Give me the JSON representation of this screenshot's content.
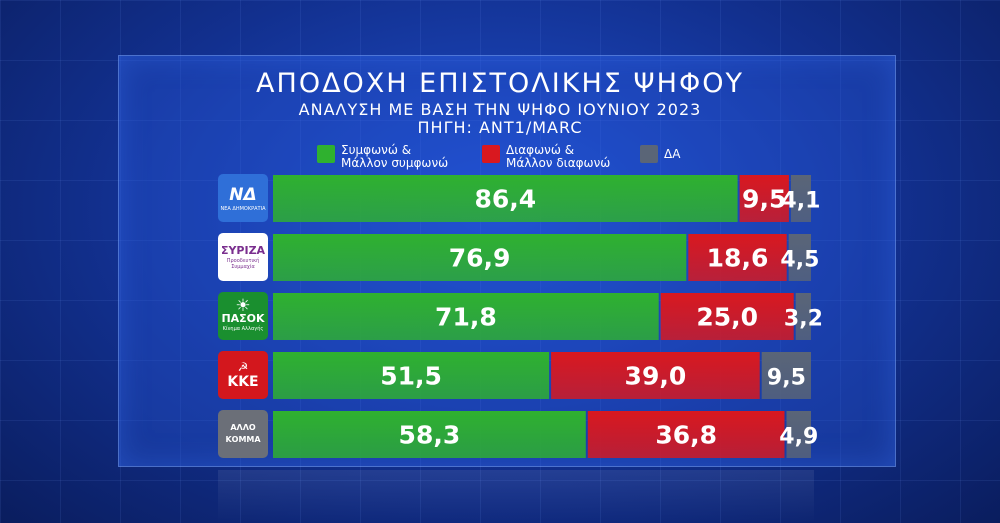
{
  "colors": {
    "agree": "#2fb12f",
    "disagree": "#d9181f",
    "dk": "#5a6577"
  },
  "logos": [
    {
      "text": "ΝΔ",
      "sub": "ΝΕΑ ΔΗΜΟΚΡΑΤΙΑ",
      "bg": "#2f6fd8",
      "color": "#ffffff",
      "icon": "nd-logo-icon"
    },
    {
      "text": "ΣΥΡΙΖΑ",
      "sub": "Προοδευτική Συμμαχία",
      "bg": "#ffffff",
      "color": "#7a2e8e",
      "icon": "syriza-logo-icon"
    },
    {
      "text": "ΠΑΣΟΚ",
      "sub": "Κίνημα Αλλαγής",
      "bg": "#1a8f2f",
      "color": "#ffffff",
      "icon": "pasok-logo-icon"
    },
    {
      "text": "ΚΚΕ",
      "sub": "",
      "bg": "#d3171d",
      "color": "#ffffff",
      "icon": "kke-logo-icon"
    },
    {
      "text": "ΑΛΛΟ ΚΟΜΜΑ",
      "sub": "",
      "bg": "#6b6f78",
      "color": "#ffffff",
      "icon": "other-party-icon"
    }
  ],
  "chart_data": {
    "type": "bar",
    "stacked": true,
    "orientation": "horizontal",
    "title": "ΑΠΟΔΟΧΗ ΕΠΙΣΤΟΛΙΚΗΣ ΨΗΦΟΥ",
    "subtitle": "ΑΝΑΛΥΣΗ ΜΕ ΒΑΣΗ ΤΗΝ ΨΗΦΟ ΙΟΥΝΙΟΥ 2023",
    "source": "ΠΗΓΗ: ΑΝΤ1/MARC",
    "categories": [
      "ΝΔ",
      "ΣΥΡΙΖΑ",
      "ΠΑΣΟΚ",
      "ΚΚΕ",
      "ΑΛΛΟ ΚΟΜΜΑ"
    ],
    "series": [
      {
        "name": "Συμφωνώ & Μάλλον συμφωνώ",
        "values": [
          86.4,
          76.9,
          71.8,
          51.5,
          58.3
        ],
        "labels": [
          "86,4",
          "76,9",
          "71,8",
          "51,5",
          "58,3"
        ]
      },
      {
        "name": "Διαφωνώ & Μάλλον διαφωνώ",
        "values": [
          9.5,
          18.6,
          25.0,
          39.0,
          36.8
        ],
        "labels": [
          "9,5",
          "18,6",
          "25,0",
          "39,0",
          "36,8"
        ]
      },
      {
        "name": "ΔΑ",
        "values": [
          4.1,
          4.5,
          3.2,
          9.5,
          4.9
        ],
        "labels": [
          "4,1",
          "4,5",
          "3,2",
          "9,5",
          "4,9"
        ]
      }
    ],
    "legend": [
      {
        "line1": "Συμφωνώ &",
        "line2": "Μάλλον συμφωνώ"
      },
      {
        "line1": "Διαφωνώ &",
        "line2": "Μάλλον διαφωνώ"
      },
      {
        "line1": "ΔΑ",
        "line2": ""
      }
    ],
    "legend_position": "top",
    "xlim": [
      0,
      100
    ],
    "grid": false
  }
}
